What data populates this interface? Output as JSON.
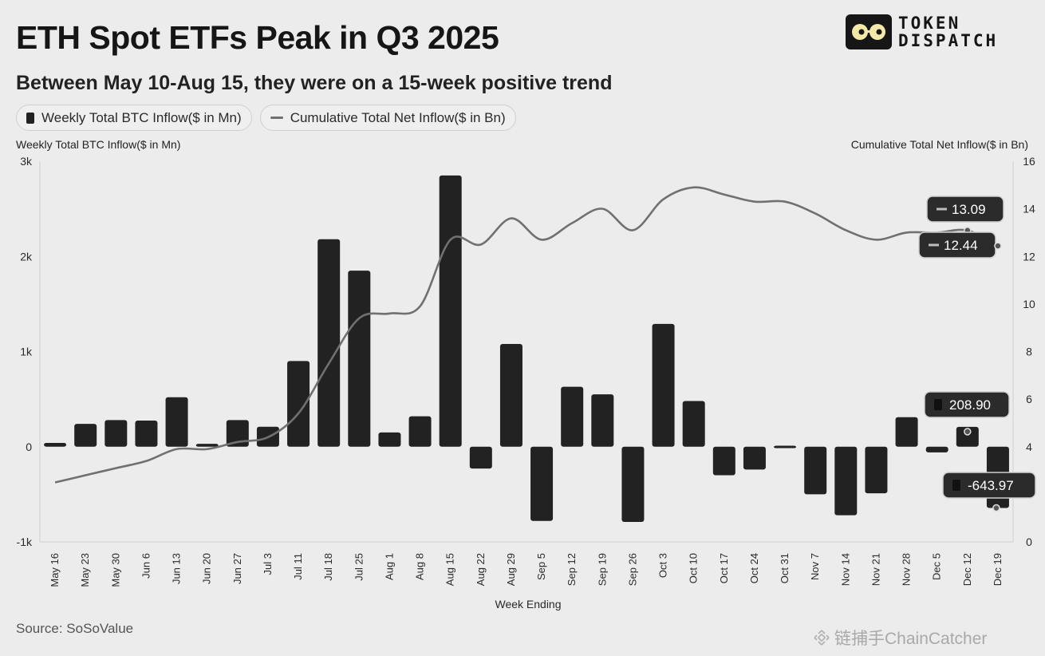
{
  "header": {
    "title": "ETH Spot ETFs Peak in Q3 2025",
    "subtitle": "Between May 10-Aug 15, they were on a 15-week positive trend"
  },
  "logo": {
    "line1": "TOKEN",
    "line2": "DISPATCH",
    "icon": "glasses-face-icon"
  },
  "source": "Source: SoSoValue",
  "watermark": {
    "icon": "binance-diamond-icon",
    "text": "链捕手ChainCatcher"
  },
  "colors": {
    "background": "#ececec",
    "bar": "#222222",
    "line": "#707070",
    "callout": "#2b2b2b"
  },
  "chart_data": {
    "type": "bar",
    "legend": [
      "Weekly Total BTC Inflow($ in Mn)",
      "Cumulative Total Net Inflow($ in Bn)"
    ],
    "legend_position": "top-left",
    "xlabel": "Week Ending",
    "ylabel_left": "Weekly Total BTC Inflow($ in Mn)",
    "ylabel_right": "Cumulative Total Net Inflow($ in Bn)",
    "ylim_left": [
      -1000,
      3000
    ],
    "ylim_right": [
      0,
      16
    ],
    "yticks_left": [
      "3k",
      "2k",
      "1k",
      "0",
      "-1k"
    ],
    "yticks_right": [
      "16",
      "14",
      "12",
      "10",
      "8",
      "6",
      "4",
      "2",
      "0"
    ],
    "grid": false,
    "categories": [
      "May 16",
      "May 23",
      "May 30",
      "Jun 6",
      "Jun 13",
      "Jun 20",
      "Jun 27",
      "Jul 3",
      "Jul 11",
      "Jul 18",
      "Jul 25",
      "Aug 1",
      "Aug 8",
      "Aug 15",
      "Aug 22",
      "Aug 29",
      "Sep 5",
      "Sep 12",
      "Sep 19",
      "Sep 26",
      "Oct 3",
      "Oct 10",
      "Oct 17",
      "Oct 24",
      "Oct 31",
      "Nov 7",
      "Nov 14",
      "Nov 21",
      "Nov 28",
      "Dec 5",
      "Dec 12",
      "Dec 19"
    ],
    "series": [
      {
        "name": "Weekly Total BTC Inflow($ in Mn)",
        "type": "bar",
        "axis": "left",
        "values": [
          40,
          240,
          280,
          275,
          520,
          30,
          280,
          210,
          900,
          2180,
          1850,
          150,
          320,
          2850,
          -230,
          1080,
          -780,
          630,
          550,
          -790,
          1290,
          480,
          -300,
          -240,
          10,
          -500,
          -720,
          -490,
          310,
          -60,
          208.9,
          -643.97
        ]
      },
      {
        "name": "Cumulative Total Net Inflow($ in Bn)",
        "type": "line",
        "axis": "right",
        "values": [
          2.5,
          2.8,
          3.1,
          3.4,
          3.9,
          3.9,
          4.2,
          4.4,
          5.4,
          7.5,
          9.4,
          9.6,
          9.9,
          12.7,
          12.5,
          13.6,
          12.7,
          13.4,
          14.0,
          13.1,
          14.4,
          14.9,
          14.6,
          14.3,
          14.3,
          13.8,
          13.1,
          12.7,
          13.0,
          13.0,
          13.09,
          12.44
        ]
      }
    ],
    "callouts": [
      {
        "text": "13.09",
        "series": "line",
        "index": 30
      },
      {
        "text": "12.44",
        "series": "line",
        "index": 31
      },
      {
        "text": "208.90",
        "series": "bar",
        "index": 30
      },
      {
        "text": "-643.97",
        "series": "bar",
        "index": 31
      }
    ]
  }
}
